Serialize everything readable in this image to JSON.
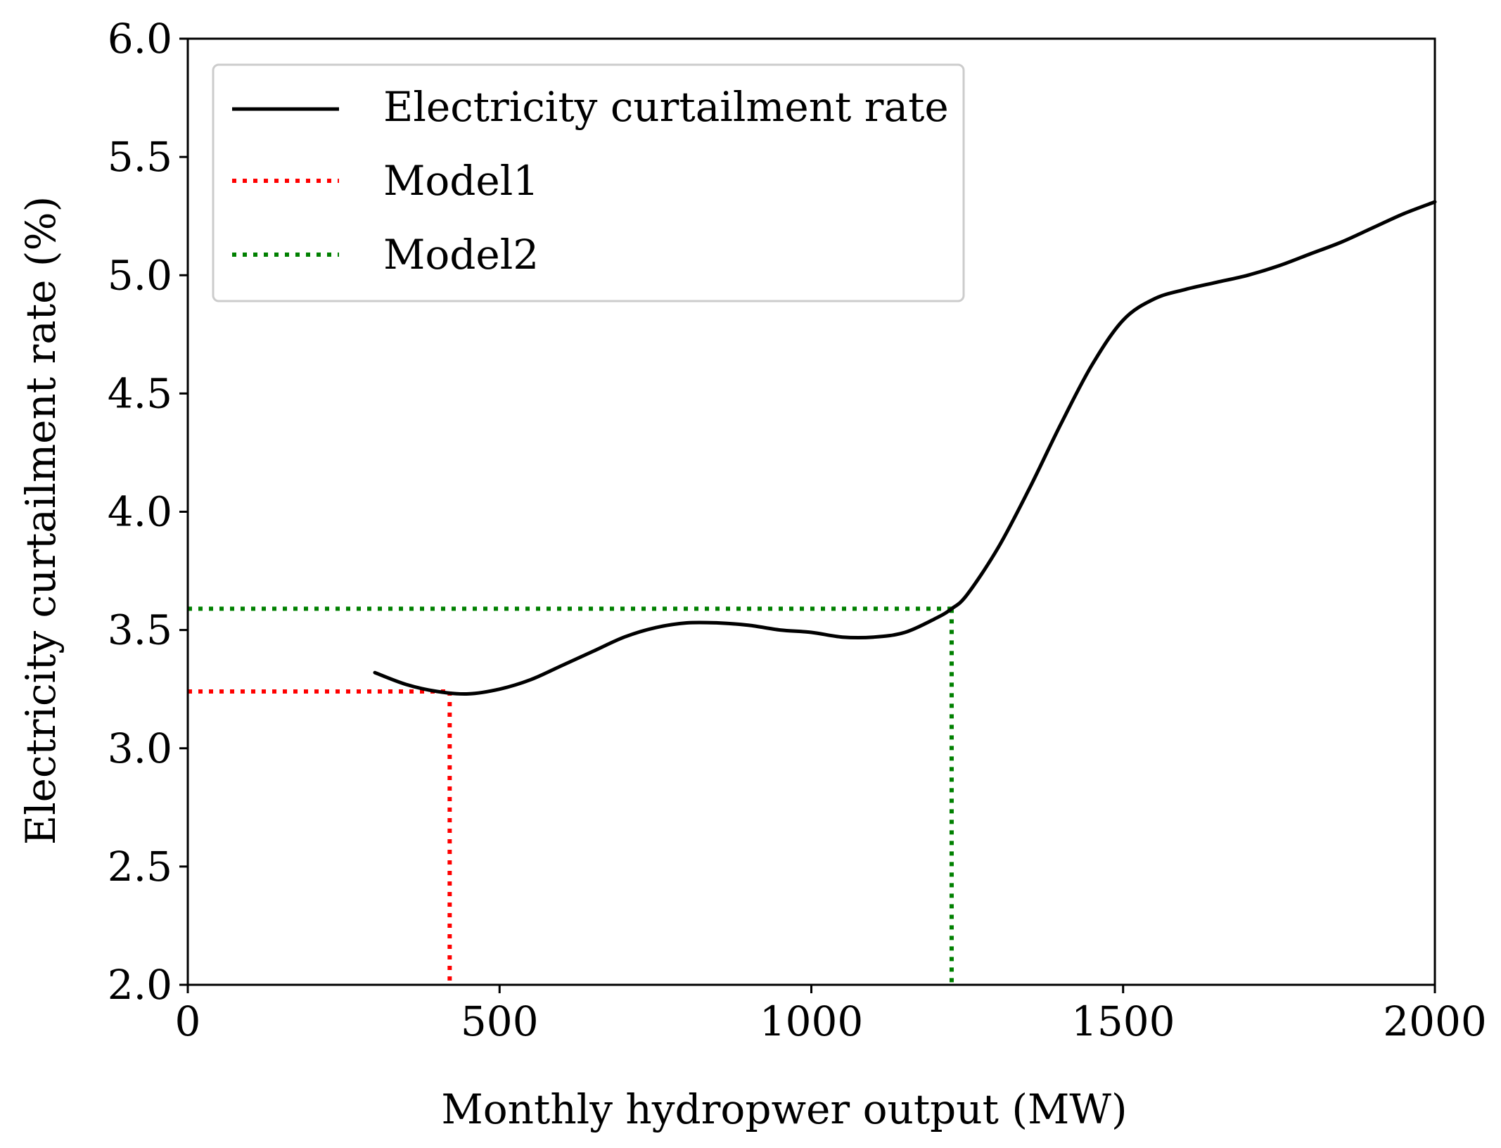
{
  "chart_data": {
    "type": "line",
    "xlabel": "Monthly hydropwer output (MW)",
    "ylabel": "Electricity curtailment rate (%)",
    "xlim": [
      0,
      2000
    ],
    "ylim": [
      2.0,
      6.0
    ],
    "xticks": [
      0,
      500,
      1000,
      1500,
      2000
    ],
    "xtick_labels": [
      "0",
      "500",
      "1000",
      "1500",
      "2000"
    ],
    "yticks": [
      2.0,
      2.5,
      3.0,
      3.5,
      4.0,
      4.5,
      5.0,
      5.5,
      6.0
    ],
    "ytick_labels": [
      "2.0",
      "2.5",
      "3.0",
      "3.5",
      "4.0",
      "4.5",
      "5.0",
      "5.5",
      "6.0"
    ],
    "grid": false,
    "legend_position": "top-left",
    "series": [
      {
        "name": "Electricity curtailment rate",
        "style": "solid",
        "color": "#000000",
        "x": [
          300,
          350,
          400,
          450,
          500,
          550,
          600,
          650,
          700,
          750,
          800,
          850,
          900,
          950,
          1000,
          1050,
          1100,
          1150,
          1200,
          1225,
          1250,
          1300,
          1350,
          1400,
          1450,
          1500,
          1550,
          1600,
          1650,
          1700,
          1750,
          1800,
          1850,
          1900,
          1950,
          2000
        ],
        "y": [
          3.32,
          3.27,
          3.24,
          3.23,
          3.25,
          3.29,
          3.35,
          3.41,
          3.47,
          3.51,
          3.53,
          3.53,
          3.52,
          3.5,
          3.49,
          3.47,
          3.47,
          3.49,
          3.55,
          3.59,
          3.65,
          3.85,
          4.1,
          4.37,
          4.62,
          4.81,
          4.9,
          4.94,
          4.97,
          5.0,
          5.04,
          5.09,
          5.14,
          5.2,
          5.26,
          5.31
        ]
      },
      {
        "name": "Model1",
        "style": "dotted",
        "color": "#ff0000",
        "point": {
          "x": 420,
          "y": 3.24
        }
      },
      {
        "name": "Model2",
        "style": "dotted",
        "color": "#008000",
        "point": {
          "x": 1225,
          "y": 3.59
        }
      }
    ]
  }
}
